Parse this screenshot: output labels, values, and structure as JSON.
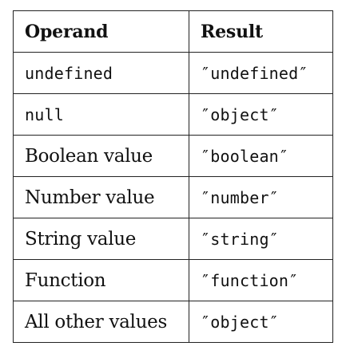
{
  "table": {
    "headers": {
      "operand": "Operand",
      "result": "Result"
    },
    "rows": [
      {
        "operand": "undefined",
        "operand_style": "mono",
        "result": "″undefined″"
      },
      {
        "operand": "null",
        "operand_style": "mono",
        "result": "″object″"
      },
      {
        "operand": "Boolean value",
        "operand_style": "serif",
        "result": "″boolean″"
      },
      {
        "operand": "Number value",
        "operand_style": "serif",
        "result": "″number″"
      },
      {
        "operand": "String value",
        "operand_style": "serif",
        "result": "″string″"
      },
      {
        "operand": "Function",
        "operand_style": "serif",
        "result": "″function″"
      },
      {
        "operand": "All other values",
        "operand_style": "serif",
        "result": "″object″"
      }
    ]
  }
}
